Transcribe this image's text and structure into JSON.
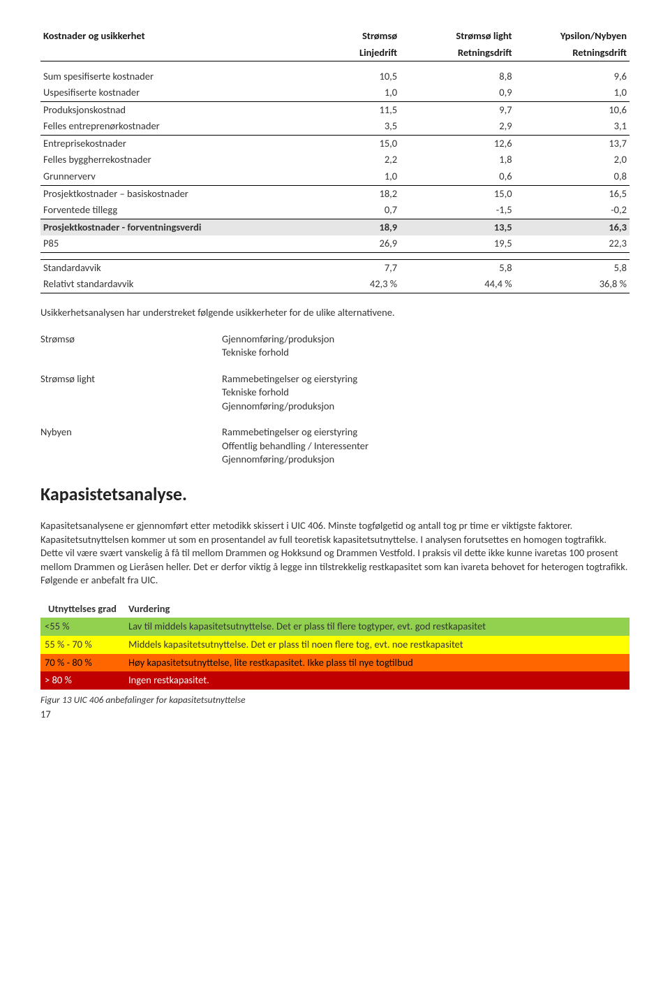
{
  "costTable": {
    "headers": {
      "title": "Kostnader og usikkerhet",
      "col1": "Strømsø",
      "col1sub": "Linjedrift",
      "col2": "Strømsø light",
      "col2sub": "Retningsdrift",
      "col3": "Ypsilon/Nybyen",
      "col3sub": "Retningsdrift"
    },
    "rows": [
      {
        "label": "Sum spesifiserte kostnader",
        "v": [
          "10,5",
          "8,8",
          "9,6"
        ]
      },
      {
        "label": "Uspesifiserte kostnader",
        "v": [
          "1,0",
          "0,9",
          "1,0"
        ]
      },
      {
        "label": "Produksjonskostnad",
        "v": [
          "11,5",
          "9,7",
          "10,6"
        ]
      },
      {
        "label": "Felles entreprenørkostnader",
        "v": [
          "3,5",
          "2,9",
          "3,1"
        ]
      },
      {
        "label": "Entreprisekostnader",
        "v": [
          "15,0",
          "12,6",
          "13,7"
        ]
      },
      {
        "label": "Felles byggherrekostnader",
        "v": [
          "2,2",
          "1,8",
          "2,0"
        ]
      },
      {
        "label": "Grunnerverv",
        "v": [
          "1,0",
          "0,6",
          "0,8"
        ]
      },
      {
        "label": "Prosjektkostnader – basiskostnader",
        "v": [
          "18,2",
          "15,0",
          "16,5"
        ]
      },
      {
        "label": "Forventede tillegg",
        "v": [
          "0,7",
          "-1,5",
          "-0,2"
        ]
      },
      {
        "label": "Prosjektkostnader - forventningsverdi",
        "v": [
          "18,9",
          "13,5",
          "16,3"
        ],
        "shaded": true,
        "bold": true
      },
      {
        "label": "P85",
        "v": [
          "26,9",
          "19,5",
          "22,3"
        ]
      },
      {
        "label": "Standardavvik",
        "v": [
          "7,7",
          "5,8",
          "5,8"
        ]
      },
      {
        "label": "Relativt standardavvik",
        "v": [
          "42,3 %",
          "44,4 %",
          "36,8 %"
        ]
      }
    ]
  },
  "para1": "Usikkerhetsanalysen har understreket følgende usikkerheter for de ulike alternativene.",
  "uncertainty": [
    {
      "name": "Strømsø",
      "items": [
        "Gjennomføring/produksjon",
        "Tekniske forhold"
      ]
    },
    {
      "name": "Strømsø light",
      "items": [
        "Rammebetingelser og eierstyring",
        "Tekniske forhold",
        "Gjennomføring/produksjon"
      ]
    },
    {
      "name": "Nybyen",
      "items": [
        "Rammebetingelser og eierstyring",
        "Offentlig behandling / Interessenter",
        "Gjennomføring/produksjon"
      ]
    }
  ],
  "h2": "Kapasistetsanalyse.",
  "para2": "Kapasitetsanalysene er gjennomført etter metodikk skissert i UIC 406. Minste togfølgetid og antall tog pr time er viktigste faktorer. Kapasitetsutnyttelsen kommer ut som en prosentandel av full teoretisk kapasitetsutnyttelse. I analysen forutsettes en homogen togtrafikk. Dette vil være svært vanskelig å få til mellom Drammen og Hokksund og Drammen Vestfold. I praksis vil dette ikke kunne ivaretas 100 prosent mellom Drammen og Lieråsen heller.  Det er derfor viktig å legge inn tilstrekkelig restkapasitet som kan ivareta behovet for heterogen togtrafikk.  Følgende er anbefalt fra UIC.",
  "vurdering": {
    "head": {
      "grad": "Utnyttelses grad",
      "vurd": "Vurdering"
    },
    "rows": [
      {
        "grad": "<55 %",
        "txt": "Lav til middels kapasitetsutnyttelse. Det er plass til flere togtyper, evt. god restkapasitet",
        "cls": "row-green"
      },
      {
        "grad": "55 % - 70 %",
        "txt": "Middels kapasitetsutnyttelse. Det er plass til noen flere tog, evt. noe restkapasitet",
        "cls": "row-yellow"
      },
      {
        "grad": "70 % - 80 %",
        "txt": "Høy kapasitetsutnyttelse, lite restkapasitet. Ikke plass til nye togtilbud",
        "cls": "row-red"
      },
      {
        "grad": "> 80 %",
        "txt": "Ingen restkapasitet.",
        "cls": "row-darkred"
      }
    ]
  },
  "caption": "Figur 13 UIC 406 anbefalinger for kapasitetsutnyttelse",
  "pagenum": "17"
}
